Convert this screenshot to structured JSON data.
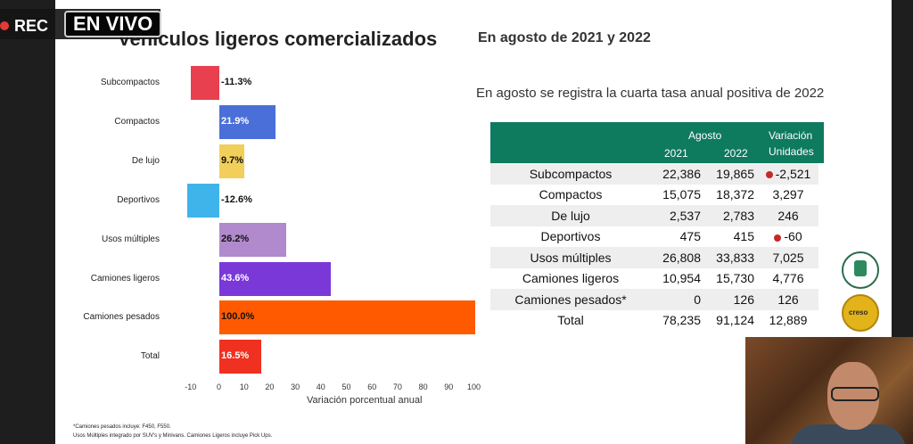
{
  "overlay": {
    "rec_label": "REC",
    "live_label": "EN VIVO"
  },
  "slide": {
    "title": "Vehículos ligeros comercializados",
    "subtitle": "En agosto de 2021 y 2022",
    "headline": "En agosto se registra la cuarta tasa anual positiva de 2022",
    "footnotes": [
      "*Camiones pesados incluye: F450, F550.",
      "Usos Múltiples integrado por SUV's y Minivans. Camiones Ligeros incluye Pick Ups."
    ]
  },
  "chart_data": {
    "type": "bar",
    "orientation": "horizontal",
    "categories": [
      "Subcompactos",
      "Compactos",
      "De lujo",
      "Deportivos",
      "Usos múltiples",
      "Camiones ligeros",
      "Camiones pesados",
      "Total"
    ],
    "values": [
      -11.3,
      21.9,
      9.7,
      -12.6,
      26.2,
      43.6,
      100.0,
      16.5
    ],
    "value_labels": [
      "-11.3%",
      "21.9%",
      "9.7%",
      "-12.6%",
      "26.2%",
      "43.6%",
      "100.0%",
      "16.5%"
    ],
    "colors": [
      "#e8404e",
      "#4a6fd8",
      "#f2cf5a",
      "#3fb4ea",
      "#b08acc",
      "#7a38d8",
      "#ff5a00",
      "#f03020"
    ],
    "xlabel": "Variación porcentual anual",
    "xticks": [
      -10,
      0,
      10,
      20,
      30,
      40,
      50,
      60,
      70,
      80,
      90,
      100
    ],
    "xlim": [
      -12.6,
      100
    ]
  },
  "table": {
    "header_group": "Agosto",
    "header_years": [
      "2021",
      "2022"
    ],
    "header_var": [
      "Variación",
      "Unidades"
    ],
    "rows": [
      {
        "cat": "Subcompactos",
        "y2021": "22,386",
        "y2022": "19,865",
        "var": "-2,521",
        "negative": true
      },
      {
        "cat": "Compactos",
        "y2021": "15,075",
        "y2022": "18,372",
        "var": "3,297",
        "negative": false
      },
      {
        "cat": "De lujo",
        "y2021": "2,537",
        "y2022": "2,783",
        "var": "246",
        "negative": false
      },
      {
        "cat": "Deportivos",
        "y2021": "475",
        "y2022": "415",
        "var": "-60",
        "negative": true
      },
      {
        "cat": "Usos múltiples",
        "y2021": "26,808",
        "y2022": "33,833",
        "var": "7,025",
        "negative": false
      },
      {
        "cat": "Camiones ligeros",
        "y2021": "10,954",
        "y2022": "15,730",
        "var": "4,776",
        "negative": false
      },
      {
        "cat": "Camiones pesados*",
        "y2021": "0",
        "y2022": "126",
        "var": "126",
        "negative": false
      },
      {
        "cat": "Total",
        "y2021": "78,235",
        "y2022": "91,124",
        "var": "12,889",
        "negative": false
      }
    ]
  },
  "seals": {
    "second_text": "creso"
  }
}
